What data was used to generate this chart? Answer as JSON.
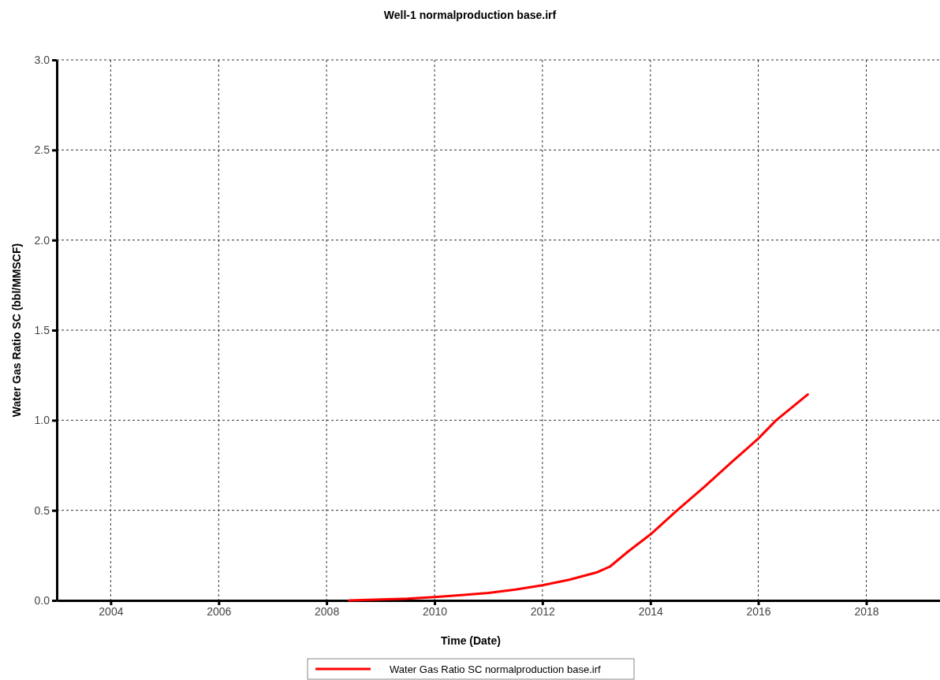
{
  "chart_data": {
    "type": "line",
    "title": "Well-1 normalproduction base.irf",
    "xlabel": "Time (Date)",
    "ylabel": "Water Gas Ratio SC (bbl/MMSCF)",
    "x": [
      "2008-06",
      "2009-01",
      "2009-07",
      "2010-01",
      "2010-07",
      "2011-01",
      "2011-07",
      "2012-01",
      "2012-07",
      "2013-01",
      "2013-04",
      "2013-08",
      "2014-01",
      "2014-07",
      "2015-01",
      "2015-07",
      "2016-01",
      "2016-05",
      "2016-12"
    ],
    "series": [
      {
        "name": "Water Gas Ratio SC normalproduction base.irf",
        "color": "#ff0000",
        "values": [
          0,
          0.005,
          0.01,
          0.019,
          0.03,
          0.042,
          0.06,
          0.084,
          0.115,
          0.155,
          0.187,
          0.27,
          0.366,
          0.5,
          0.63,
          0.765,
          0.898,
          1.0,
          1.143
        ]
      }
    ],
    "xlim": [
      "2003-01-01",
      "2019-05-15"
    ],
    "xticks": [
      "2004",
      "2006",
      "2008",
      "2010",
      "2012",
      "2014",
      "2016",
      "2018"
    ],
    "ylim": [
      0,
      3
    ],
    "yticks": [
      {
        "value": 0,
        "label": "0.0"
      },
      {
        "value": 0.5,
        "label": "0.5"
      },
      {
        "value": 1,
        "label": "1.0"
      },
      {
        "value": 1.5,
        "label": "1.5"
      },
      {
        "value": 2,
        "label": "2.0"
      },
      {
        "value": 2.5,
        "label": "2.5"
      },
      {
        "value": 3,
        "label": "3.0"
      }
    ],
    "grid": true,
    "legend": "bottom",
    "marker": "none",
    "line_style": "solid"
  }
}
